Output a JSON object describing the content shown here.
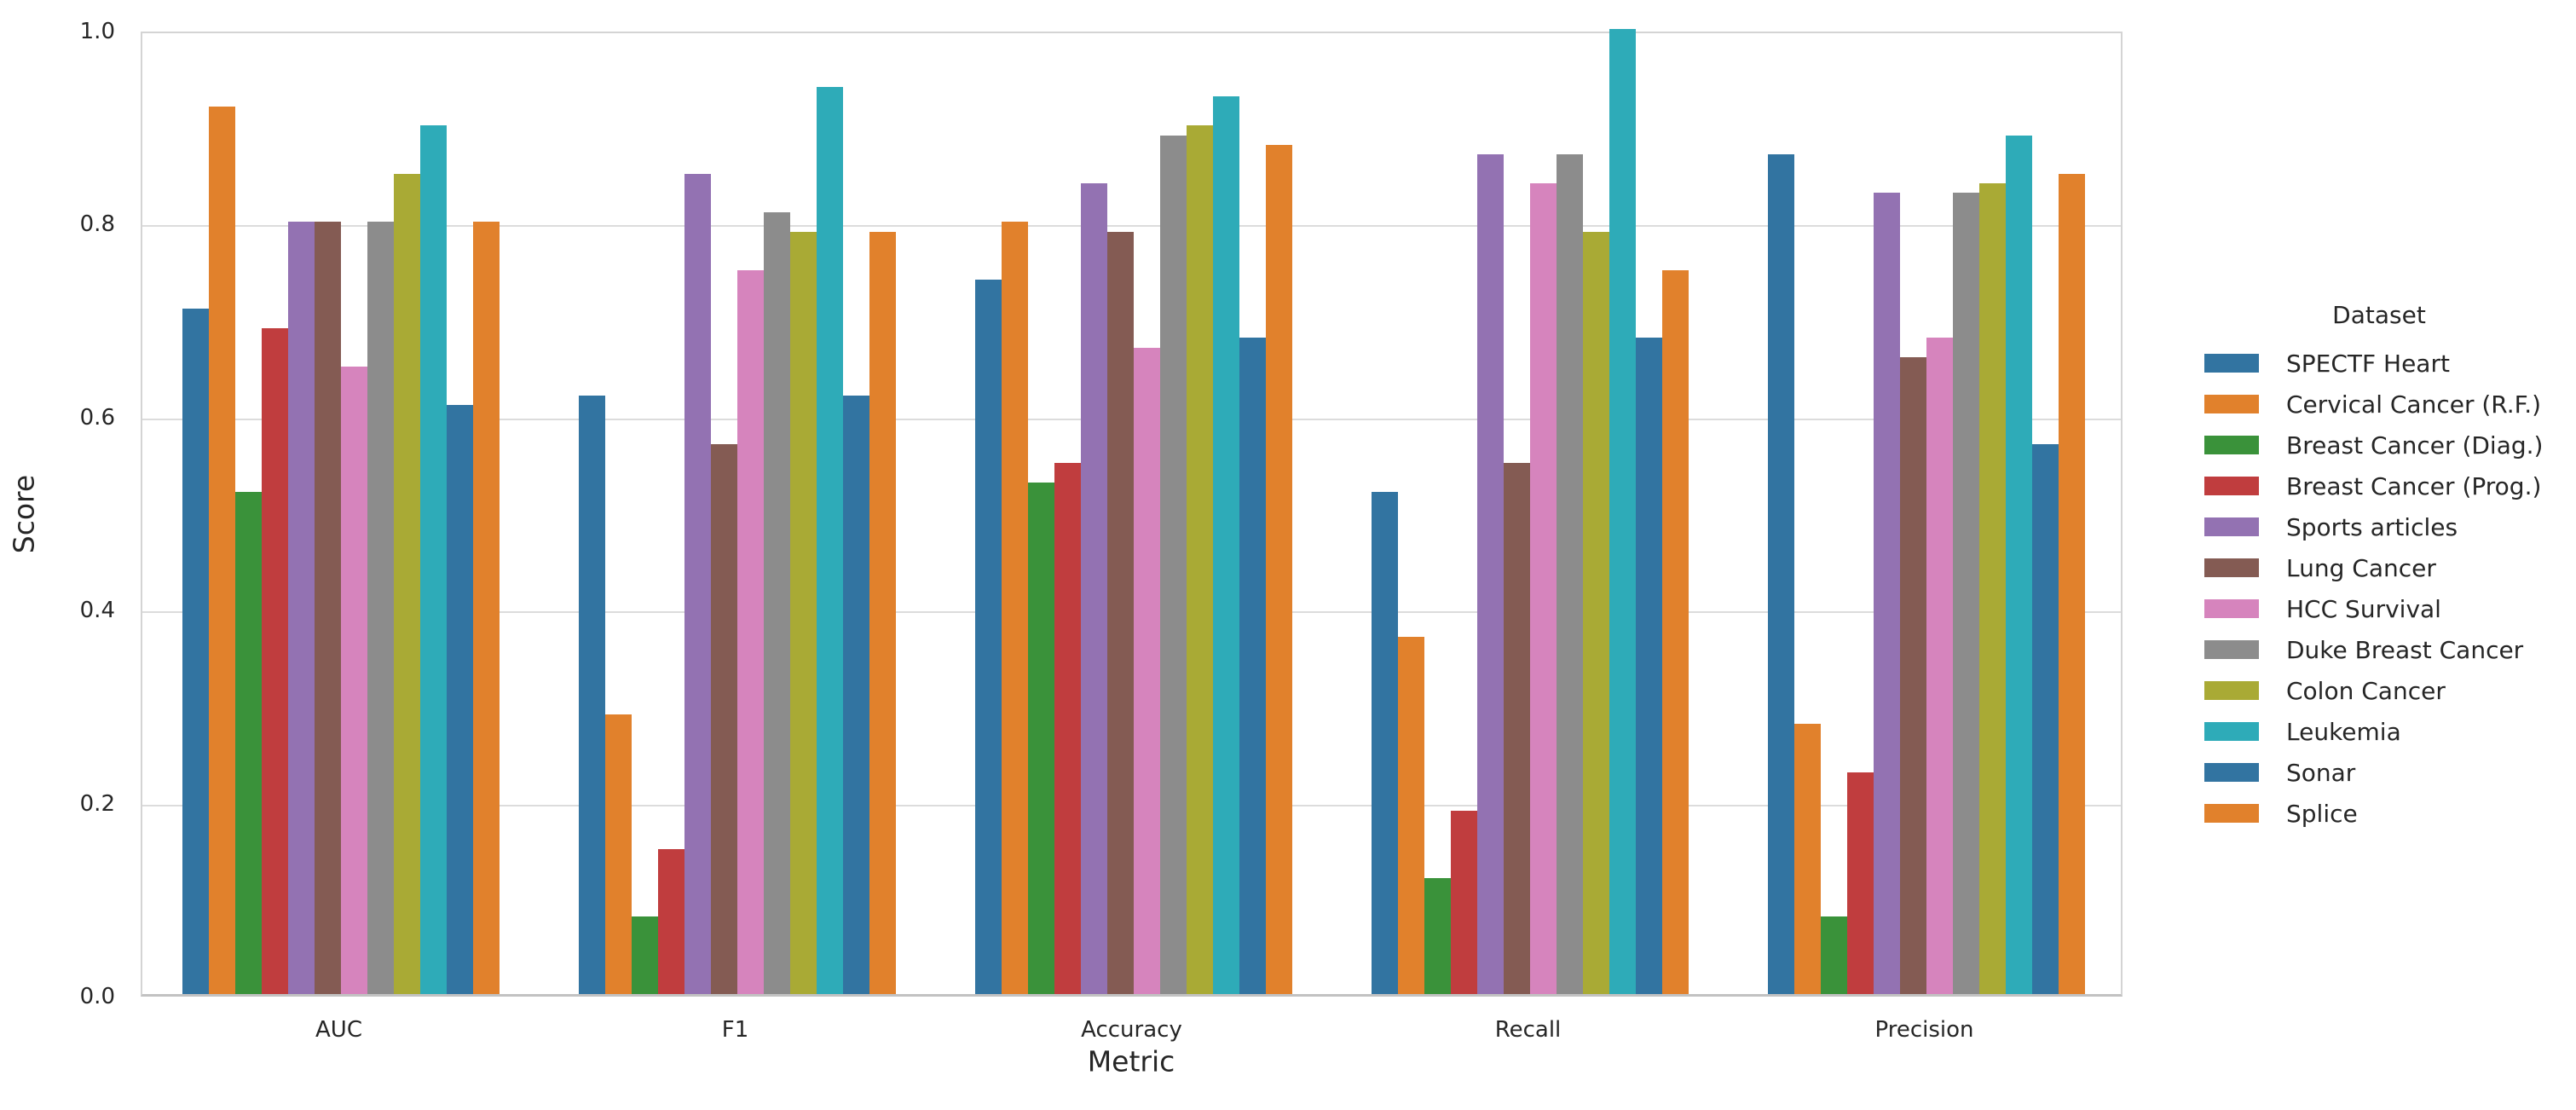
{
  "chart_data": {
    "type": "bar",
    "title": "",
    "xlabel": "Metric",
    "ylabel": "Score",
    "ylim": [
      0.0,
      1.0
    ],
    "yticks": [
      0.0,
      0.2,
      0.4,
      0.6,
      0.8,
      1.0
    ],
    "grid": "horizontal",
    "legend_title": "Dataset",
    "legend_position": "right",
    "categories": [
      "AUC",
      "F1",
      "Accuracy",
      "Recall",
      "Precision"
    ],
    "series": [
      {
        "name": "SPECTF Heart",
        "color": "#3274a1",
        "values": [
          0.71,
          0.62,
          0.74,
          0.52,
          0.87
        ]
      },
      {
        "name": "Cervical Cancer (R.F.)",
        "color": "#e1812c",
        "values": [
          0.92,
          0.29,
          0.8,
          0.37,
          0.28
        ]
      },
      {
        "name": "Breast Cancer (Diag.)",
        "color": "#3a923a",
        "values": [
          0.52,
          0.08,
          0.53,
          0.12,
          0.08
        ]
      },
      {
        "name": "Breast Cancer (Prog.)",
        "color": "#c03d3e",
        "values": [
          0.69,
          0.15,
          0.55,
          0.19,
          0.23
        ]
      },
      {
        "name": "Sports articles",
        "color": "#9372b2",
        "values": [
          0.8,
          0.85,
          0.84,
          0.87,
          0.83
        ]
      },
      {
        "name": "Lung Cancer",
        "color": "#845b53",
        "values": [
          0.8,
          0.57,
          0.79,
          0.55,
          0.66
        ]
      },
      {
        "name": "HCC Survival",
        "color": "#d684bd",
        "values": [
          0.65,
          0.75,
          0.67,
          0.84,
          0.68
        ]
      },
      {
        "name": "Duke Breast Cancer",
        "color": "#8c8c8c",
        "values": [
          0.8,
          0.81,
          0.89,
          0.87,
          0.83
        ]
      },
      {
        "name": "Colon Cancer",
        "color": "#a9aa35",
        "values": [
          0.85,
          0.79,
          0.9,
          0.79,
          0.84
        ]
      },
      {
        "name": "Leukemia",
        "color": "#2eabb8",
        "values": [
          0.9,
          0.94,
          0.93,
          1.0,
          0.89
        ]
      },
      {
        "name": "Sonar",
        "color": "#3274a1",
        "values": [
          0.61,
          0.62,
          0.68,
          0.68,
          0.57
        ]
      },
      {
        "name": "Splice",
        "color": "#e1812c",
        "values": [
          0.8,
          0.79,
          0.88,
          0.75,
          0.85
        ]
      }
    ]
  }
}
